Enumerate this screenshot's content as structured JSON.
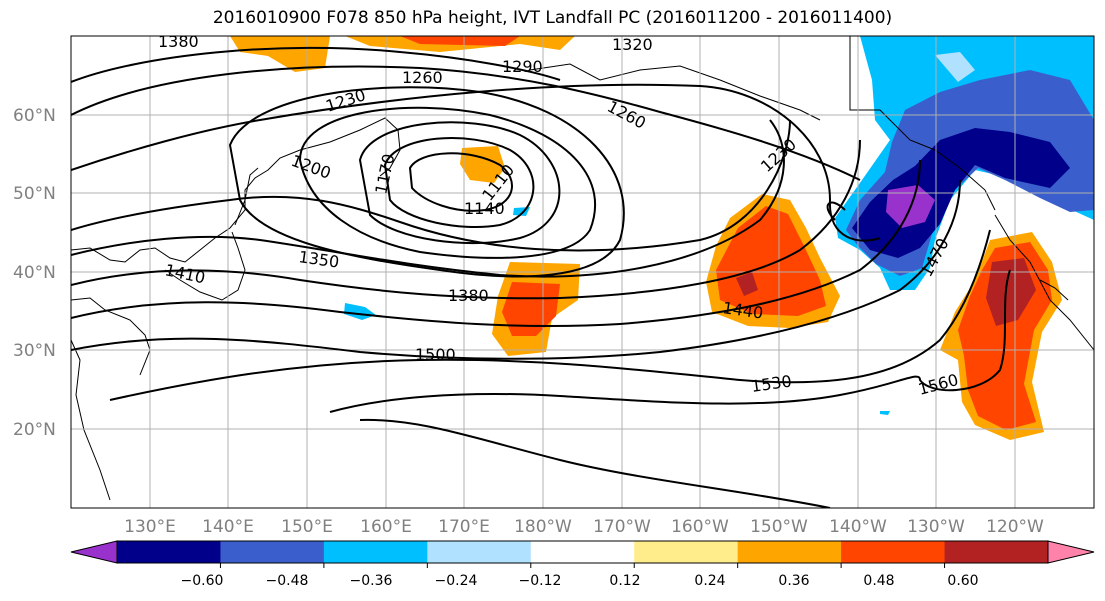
{
  "title": "2016010900 F078 850 hPa height, IVT Landfall PC (2016011200 - 2016011400)",
  "map": {
    "lat_labels": [
      "60°N",
      "50°N",
      "40°N",
      "30°N",
      "20°N"
    ],
    "lon_labels": [
      "130°E",
      "140°E",
      "150°E",
      "160°E",
      "170°E",
      "180°W",
      "170°W",
      "160°W",
      "150°W",
      "140°W",
      "130°W",
      "120°W"
    ],
    "contour_labels": [
      "1380",
      "1320",
      "1290",
      "1260",
      "1230",
      "1200",
      "1170",
      "1110",
      "1140",
      "1260",
      "1230",
      "1350",
      "1410",
      "1380",
      "1440",
      "1470",
      "1500",
      "1530",
      "1560"
    ]
  },
  "colorbar": {
    "tick_labels": [
      "−0.60",
      "−0.48",
      "−0.36",
      "−0.24",
      "−0.12",
      "0.12",
      "0.24",
      "0.36",
      "0.48",
      "0.60"
    ],
    "colors": [
      "#9932cc",
      "#00008b",
      "#3a5fcd",
      "#00bfff",
      "#b0e2ff",
      "#ffffff",
      "#ffec8b",
      "#ffa500",
      "#ff4500",
      "#b22222",
      "#ff82ab"
    ]
  }
}
